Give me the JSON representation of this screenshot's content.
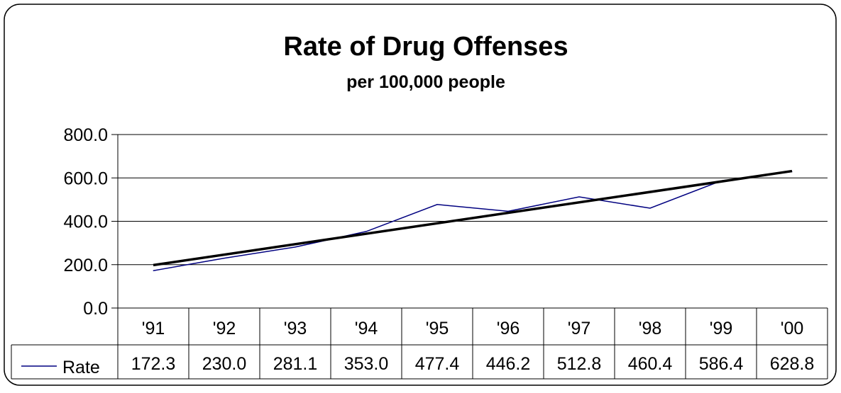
{
  "chart_data": {
    "type": "line",
    "title": "Rate of Drug Offenses",
    "subtitle": "per 100,000 people",
    "categories": [
      "'91",
      "'92",
      "'93",
      "'94",
      "'95",
      "'96",
      "'97",
      "'98",
      "'99",
      "'00"
    ],
    "series": [
      {
        "name": "Rate",
        "values": [
          172.3,
          230.0,
          281.1,
          353.0,
          477.4,
          446.2,
          512.8,
          460.4,
          586.4,
          628.8
        ],
        "value_labels": [
          "172.3",
          "230.0",
          "281.1",
          "353.0",
          "477.4",
          "446.2",
          "512.8",
          "460.4",
          "586.4",
          "628.8"
        ],
        "color": "#000080"
      }
    ],
    "trendline": {
      "type": "linear",
      "color": "#000000"
    },
    "ylim": [
      0,
      800
    ],
    "yticks": [
      0,
      200,
      400,
      600,
      800
    ],
    "ytick_labels": [
      "0.0",
      "200.0",
      "400.0",
      "600.0",
      "800.0"
    ],
    "grid": true,
    "data_table": true,
    "legend": "data-table"
  }
}
